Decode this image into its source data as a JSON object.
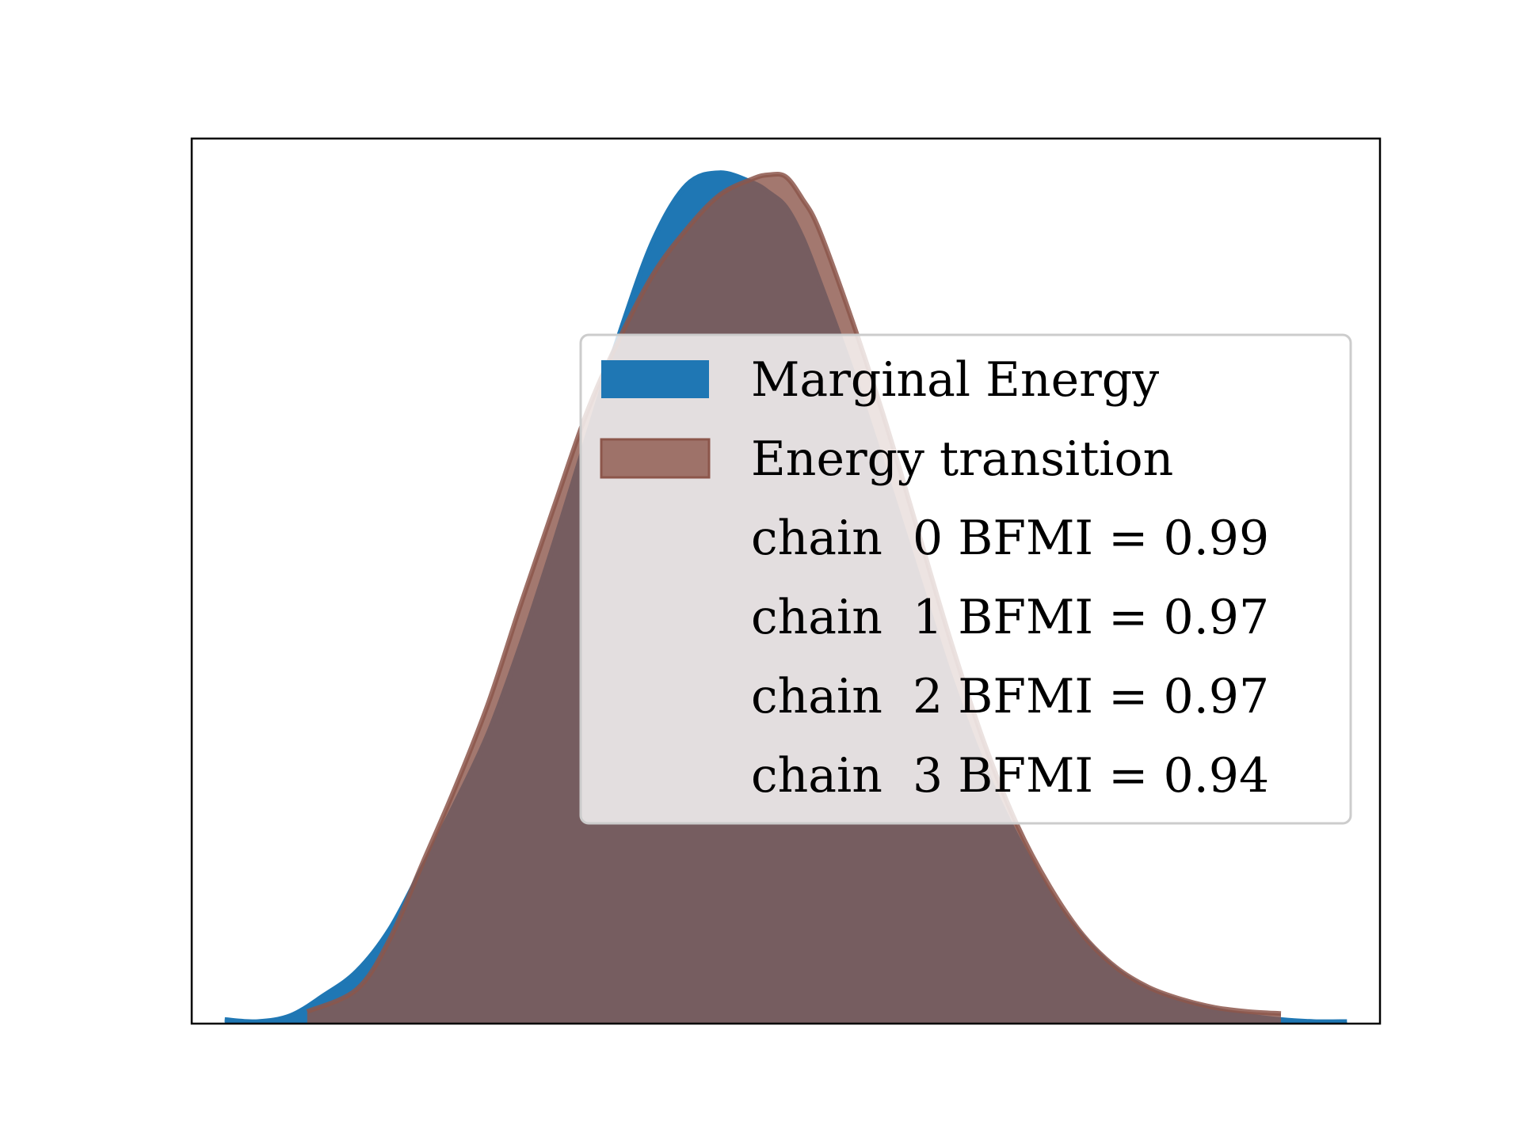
{
  "chart_data": {
    "type": "area",
    "title": "",
    "xlabel": "",
    "ylabel": "",
    "xlim": [
      -3.6,
      3.6
    ],
    "ylim": [
      0,
      0.44
    ],
    "ticks_visible": false,
    "grid": false,
    "legend_position": "right",
    "series": [
      {
        "name": "Marginal Energy",
        "color": "#1f77b4",
        "opacity": 1.0,
        "x": [
          -3.4,
          -3.2,
          -3.0,
          -2.8,
          -2.6,
          -2.4,
          -2.2,
          -2.0,
          -1.8,
          -1.6,
          -1.4,
          -1.2,
          -1.0,
          -0.8,
          -0.6,
          -0.4,
          -0.2,
          -0.1,
          0.0,
          0.1,
          0.2,
          0.4,
          0.6,
          0.8,
          1.0,
          1.2,
          1.4,
          1.6,
          1.8,
          2.0,
          2.2,
          2.4,
          2.6,
          2.8,
          3.0,
          3.2,
          3.4
        ],
        "y": [
          0.002,
          0.001,
          0.004,
          0.014,
          0.026,
          0.047,
          0.078,
          0.11,
          0.145,
          0.19,
          0.24,
          0.293,
          0.345,
          0.39,
          0.417,
          0.423,
          0.418,
          0.413,
          0.406,
          0.391,
          0.37,
          0.325,
          0.275,
          0.223,
          0.172,
          0.128,
          0.093,
          0.065,
          0.043,
          0.027,
          0.017,
          0.011,
          0.007,
          0.004,
          0.002,
          0.001,
          0.001
        ]
      },
      {
        "name": "Energy transition",
        "color": "#8c564b",
        "opacity": 0.8,
        "x": [
          -2.9,
          -2.6,
          -2.4,
          -2.2,
          -2.0,
          -1.8,
          -1.6,
          -1.4,
          -1.2,
          -1.0,
          -0.8,
          -0.6,
          -0.4,
          -0.2,
          -0.1,
          0.0,
          0.1,
          0.2,
          0.4,
          0.6,
          0.8,
          1.0,
          1.2,
          1.4,
          1.6,
          1.8,
          2.0,
          2.2,
          2.4,
          2.6,
          2.8,
          3.0
        ],
        "y": [
          0.006,
          0.017,
          0.042,
          0.08,
          0.118,
          0.16,
          0.21,
          0.258,
          0.305,
          0.342,
          0.373,
          0.395,
          0.412,
          0.42,
          0.422,
          0.421,
          0.41,
          0.395,
          0.35,
          0.3,
          0.245,
          0.19,
          0.14,
          0.099,
          0.068,
          0.044,
          0.028,
          0.018,
          0.012,
          0.008,
          0.006,
          0.005
        ]
      }
    ],
    "legend_entries": [
      "Marginal Energy",
      "Energy transition",
      "chain  0 BFMI = 0.99",
      "chain  1 BFMI = 0.97",
      "chain  2 BFMI = 0.97",
      "chain  3 BFMI = 0.94"
    ]
  }
}
